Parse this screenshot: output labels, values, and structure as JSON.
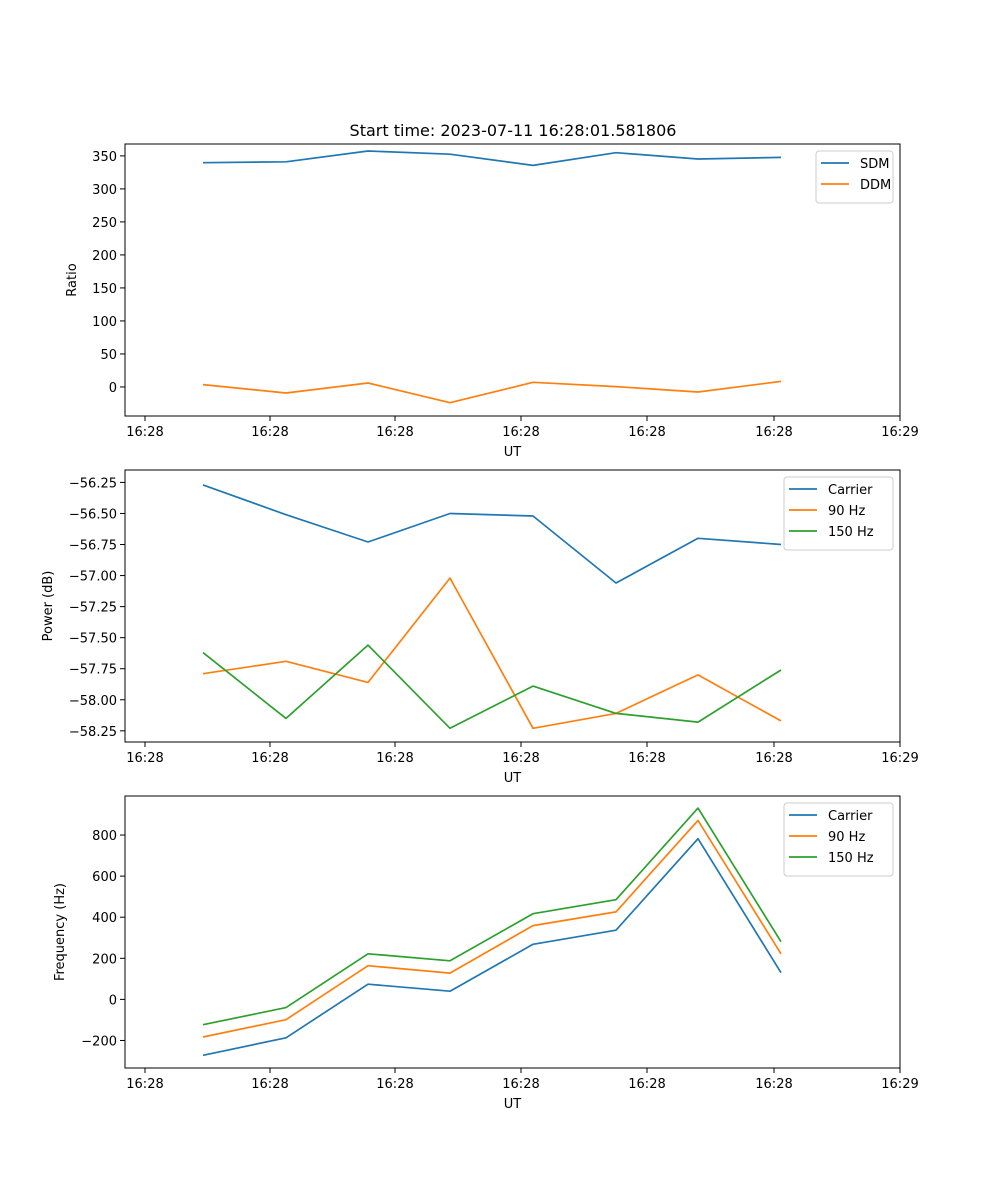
{
  "figure_title": "Start time: 2023-07-11 16:28:01.581806",
  "colors": {
    "blue": "#1f77b4",
    "orange": "#ff7f0e",
    "green": "#2ca02c"
  },
  "chart_data": [
    {
      "type": "line",
      "title": "Start time: 2023-07-11 16:28:01.581806",
      "xlabel": "UT",
      "ylabel": "Ratio",
      "x_ticks": [
        "16:28",
        "16:28",
        "16:28",
        "16:28",
        "16:28",
        "16:28",
        "16:29"
      ],
      "y_ticks": [
        0,
        50,
        100,
        150,
        200,
        250,
        300,
        350
      ],
      "ylim": [
        -44,
        368
      ],
      "legend_position": "top-right",
      "series": [
        {
          "name": "SDM",
          "color": "#1f77b4",
          "values": [
            339.7,
            341.0,
            357.4,
            352.6,
            335.6,
            354.8,
            345.3,
            347.7
          ]
        },
        {
          "name": "DDM",
          "color": "#ff7f0e",
          "values": [
            3.6,
            -9.2,
            6.0,
            -23.8,
            7.0,
            0.5,
            -7.6,
            8.4
          ]
        }
      ]
    },
    {
      "type": "line",
      "title": "",
      "xlabel": "UT",
      "ylabel": "Power (dB)",
      "x_ticks": [
        "16:28",
        "16:28",
        "16:28",
        "16:28",
        "16:28",
        "16:28",
        "16:29"
      ],
      "y_ticks": [
        -56.25,
        -56.5,
        -56.75,
        -57.0,
        -57.25,
        -57.5,
        -57.75,
        -58.0,
        -58.25
      ],
      "y_tick_labels": [
        "−56.25",
        "−56.50",
        "−56.75",
        "−57.00",
        "−57.25",
        "−57.50",
        "−57.75",
        "−58.00",
        "−58.25"
      ],
      "ylim": [
        -58.34,
        -56.15
      ],
      "legend_position": "top-right",
      "series": [
        {
          "name": "Carrier",
          "color": "#1f77b4",
          "values": [
            -56.27,
            -56.51,
            -56.73,
            -56.5,
            -56.52,
            -57.06,
            -56.7,
            -56.75
          ]
        },
        {
          "name": "90 Hz",
          "color": "#ff7f0e",
          "values": [
            -57.79,
            -57.69,
            -57.86,
            -57.02,
            -58.23,
            -58.11,
            -57.8,
            -58.17
          ]
        },
        {
          "name": "150 Hz",
          "color": "#2ca02c",
          "values": [
            -57.62,
            -58.15,
            -57.56,
            -58.23,
            -57.89,
            -58.11,
            -58.18,
            -57.76
          ]
        }
      ]
    },
    {
      "type": "line",
      "title": "",
      "xlabel": "UT",
      "ylabel": "Frequency (Hz)",
      "x_ticks": [
        "16:28",
        "16:28",
        "16:28",
        "16:28",
        "16:28",
        "16:28",
        "16:29"
      ],
      "y_ticks": [
        -200,
        0,
        200,
        400,
        600,
        800
      ],
      "y_tick_labels": [
        "−200",
        "0",
        "200",
        "400",
        "600",
        "800"
      ],
      "ylim": [
        -334,
        990
      ],
      "legend_position": "top-right",
      "series": [
        {
          "name": "Carrier",
          "color": "#1f77b4",
          "values": [
            -272,
            -187,
            74,
            40,
            268,
            337,
            782,
            130
          ]
        },
        {
          "name": "90 Hz",
          "color": "#ff7f0e",
          "values": [
            -183,
            -99,
            164,
            128,
            359,
            426,
            871,
            222
          ]
        },
        {
          "name": "150 Hz",
          "color": "#2ca02c",
          "values": [
            -123,
            -40,
            222,
            188,
            417,
            485,
            931,
            281
          ]
        }
      ]
    }
  ]
}
